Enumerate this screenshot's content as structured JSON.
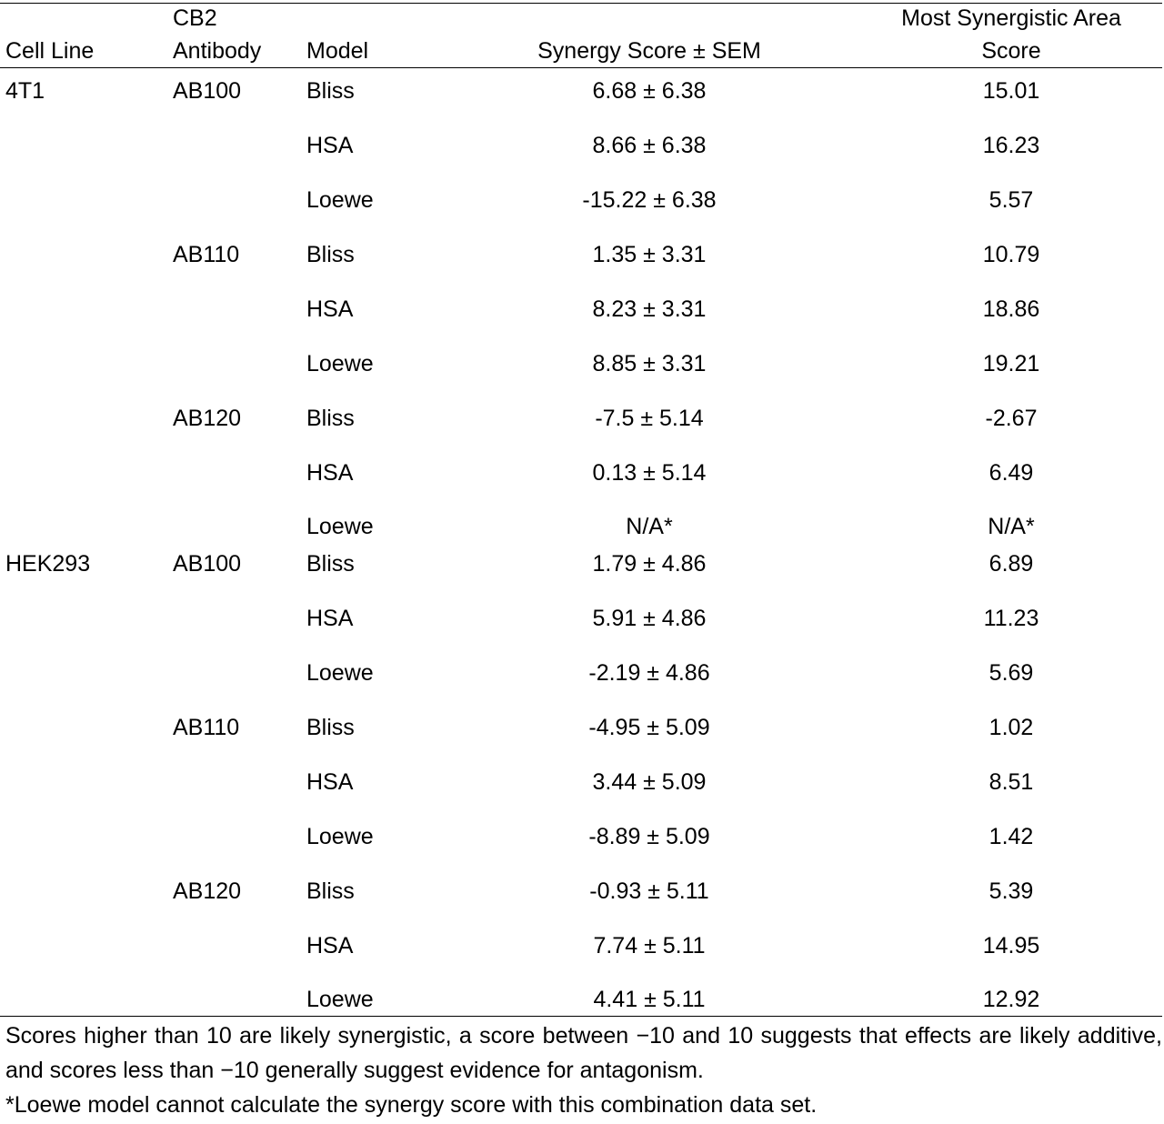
{
  "table": {
    "headers": {
      "cell_line": "Cell Line",
      "antibody_line1": "CB2",
      "antibody_line2": "Antibody",
      "model": "Model",
      "synergy": "Synergy Score ± SEM",
      "area_line1": "Most Synergistic Area",
      "area_line2": "Score"
    },
    "rows": [
      {
        "cell_line": "4T1",
        "antibody": "AB100",
        "model": "Bliss",
        "synergy": "6.68 ± 6.38",
        "area": "15.01"
      },
      {
        "cell_line": "",
        "antibody": "",
        "model": "HSA",
        "synergy": "8.66 ± 6.38",
        "area": "16.23"
      },
      {
        "cell_line": "",
        "antibody": "",
        "model": "Loewe",
        "synergy": "-15.22 ± 6.38",
        "area": "5.57"
      },
      {
        "cell_line": "",
        "antibody": "AB110",
        "model": "Bliss",
        "synergy": "1.35 ± 3.31",
        "area": "10.79"
      },
      {
        "cell_line": "",
        "antibody": "",
        "model": "HSA",
        "synergy": "8.23 ± 3.31",
        "area": "18.86"
      },
      {
        "cell_line": "",
        "antibody": "",
        "model": "Loewe",
        "synergy": "8.85 ± 3.31",
        "area": "19.21"
      },
      {
        "cell_line": "",
        "antibody": "AB120",
        "model": "Bliss",
        "synergy": "-7.5 ± 5.14",
        "area": "-2.67"
      },
      {
        "cell_line": "",
        "antibody": "",
        "model": "HSA",
        "synergy": "0.13 ± 5.14",
        "area": "6.49"
      },
      {
        "cell_line": "",
        "antibody": "",
        "model": "Loewe",
        "synergy": "N/A*",
        "area": "N/A*"
      },
      {
        "cell_line": "HEK293",
        "antibody": "AB100",
        "model": "Bliss",
        "synergy": "1.79 ± 4.86",
        "area": "6.89"
      },
      {
        "cell_line": "",
        "antibody": "",
        "model": "HSA",
        "synergy": "5.91 ± 4.86",
        "area": "11.23"
      },
      {
        "cell_line": "",
        "antibody": "",
        "model": "Loewe",
        "synergy": "-2.19 ± 4.86",
        "area": "5.69"
      },
      {
        "cell_line": "",
        "antibody": "AB110",
        "model": "Bliss",
        "synergy": "-4.95 ± 5.09",
        "area": "1.02"
      },
      {
        "cell_line": "",
        "antibody": "",
        "model": "HSA",
        "synergy": "3.44 ± 5.09",
        "area": "8.51"
      },
      {
        "cell_line": "",
        "antibody": "",
        "model": "Loewe",
        "synergy": "-8.89 ± 5.09",
        "area": "1.42"
      },
      {
        "cell_line": "",
        "antibody": "AB120",
        "model": "Bliss",
        "synergy": "-0.93 ± 5.11",
        "area": "5.39"
      },
      {
        "cell_line": "",
        "antibody": "",
        "model": "HSA",
        "synergy": "7.74 ± 5.11",
        "area": "14.95"
      },
      {
        "cell_line": "",
        "antibody": "",
        "model": "Loewe",
        "synergy": "4.41 ± 5.11",
        "area": "12.92"
      }
    ]
  },
  "footnote": {
    "line1": "Scores higher than 10 are likely synergistic, a score between −10 and 10 suggests that effects are likely additive, and scores less than −10 generally suggest evidence for antagonism.",
    "line2": "*Loewe model cannot calculate the synergy score with this combination data set."
  }
}
